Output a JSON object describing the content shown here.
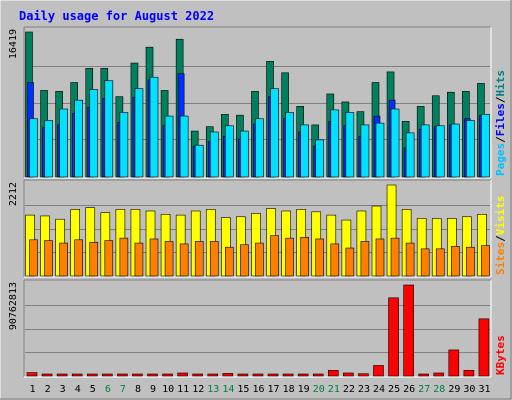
{
  "title": "Daily usage for August 2022",
  "colors": {
    "background": "#c0c0c0",
    "title": "#0000ff",
    "hits": "#008080",
    "hits_bar": "#00805c",
    "files": "#0000ff",
    "files_bar": "#0030ff",
    "pages": "#00c0ff",
    "pages_bar": "#00e0ff",
    "visits": "#ffff00",
    "sites": "#ff8000",
    "kbytes": "#ff0000",
    "weekend": "#008040",
    "weekday": "#000000"
  },
  "chart_data": [
    {
      "type": "bar",
      "panel": "hits-files-pages",
      "max_label": "16419",
      "legend": [
        "Pages",
        "Files",
        "Hits"
      ],
      "x": [
        1,
        2,
        3,
        4,
        5,
        6,
        7,
        8,
        9,
        10,
        11,
        12,
        13,
        14,
        15,
        16,
        17,
        18,
        19,
        20,
        21,
        22,
        23,
        24,
        25,
        26,
        27,
        28,
        29,
        30,
        31
      ],
      "ylim": [
        0,
        16419
      ],
      "series": [
        {
          "name": "Hits",
          "values": [
            16419,
            9800,
            9700,
            10700,
            12300,
            12300,
            9100,
            12900,
            14700,
            9800,
            15600,
            5200,
            5700,
            7100,
            7000,
            9700,
            13100,
            11800,
            8000,
            5900,
            9400,
            8500,
            7400,
            10700,
            11900,
            6300,
            8000,
            9200,
            9600,
            9700,
            10600
          ]
        },
        {
          "name": "Files",
          "values": [
            10700,
            5600,
            5900,
            7200,
            7900,
            8900,
            6200,
            9000,
            11000,
            5800,
            11700,
            3500,
            4000,
            4600,
            4300,
            6000,
            9100,
            6600,
            5100,
            3500,
            6300,
            5800,
            4600,
            6900,
            8700,
            3300,
            5400,
            5700,
            5900,
            6600,
            7000
          ]
        },
        {
          "name": "Pages",
          "values": [
            6600,
            6400,
            7700,
            8700,
            9900,
            10900,
            7300,
            10000,
            11300,
            6900,
            6900,
            3600,
            5100,
            5800,
            5200,
            6600,
            10000,
            7300,
            5900,
            4200,
            7600,
            7300,
            5900,
            6100,
            7700,
            5000,
            5900,
            5800,
            6000,
            6400,
            7100
          ]
        }
      ]
    },
    {
      "type": "bar",
      "panel": "visits-sites",
      "max_label": "2212",
      "legend": [
        "Sites",
        "Visits"
      ],
      "x": [
        1,
        2,
        3,
        4,
        5,
        6,
        7,
        8,
        9,
        10,
        11,
        12,
        13,
        14,
        15,
        16,
        17,
        18,
        19,
        20,
        21,
        22,
        23,
        24,
        25,
        26,
        27,
        28,
        29,
        30,
        31
      ],
      "ylim": [
        0,
        2212
      ],
      "series": [
        {
          "name": "Visits",
          "values": [
            1480,
            1460,
            1380,
            1620,
            1660,
            1540,
            1620,
            1620,
            1580,
            1500,
            1480,
            1580,
            1620,
            1420,
            1440,
            1520,
            1640,
            1580,
            1620,
            1560,
            1480,
            1360,
            1580,
            1700,
            2212,
            1620,
            1400,
            1400,
            1400,
            1440,
            1500
          ]
        },
        {
          "name": "Sites",
          "values": [
            880,
            860,
            800,
            880,
            820,
            860,
            920,
            800,
            900,
            840,
            780,
            840,
            840,
            700,
            760,
            800,
            980,
            920,
            940,
            900,
            780,
            680,
            840,
            900,
            920,
            800,
            660,
            660,
            720,
            700,
            740
          ]
        }
      ]
    },
    {
      "type": "bar",
      "panel": "kbytes",
      "max_label": "90762813",
      "legend": [
        "KBytes"
      ],
      "x": [
        1,
        2,
        3,
        4,
        5,
        6,
        7,
        8,
        9,
        10,
        11,
        12,
        13,
        14,
        15,
        16,
        17,
        18,
        19,
        20,
        21,
        22,
        23,
        24,
        25,
        26,
        27,
        28,
        29,
        30,
        31
      ],
      "ylim": [
        0,
        90762813
      ],
      "series": [
        {
          "name": "KBytes",
          "values": [
            3400000,
            800000,
            800000,
            800000,
            800000,
            800000,
            800000,
            800000,
            800000,
            800000,
            3000000,
            800000,
            800000,
            2600000,
            800000,
            800000,
            800000,
            800000,
            800000,
            800000,
            5600000,
            3000000,
            2300000,
            10500000,
            78000000,
            90762813,
            900000,
            3000000,
            26000000,
            5600000,
            57000000
          ]
        }
      ]
    }
  ]
}
